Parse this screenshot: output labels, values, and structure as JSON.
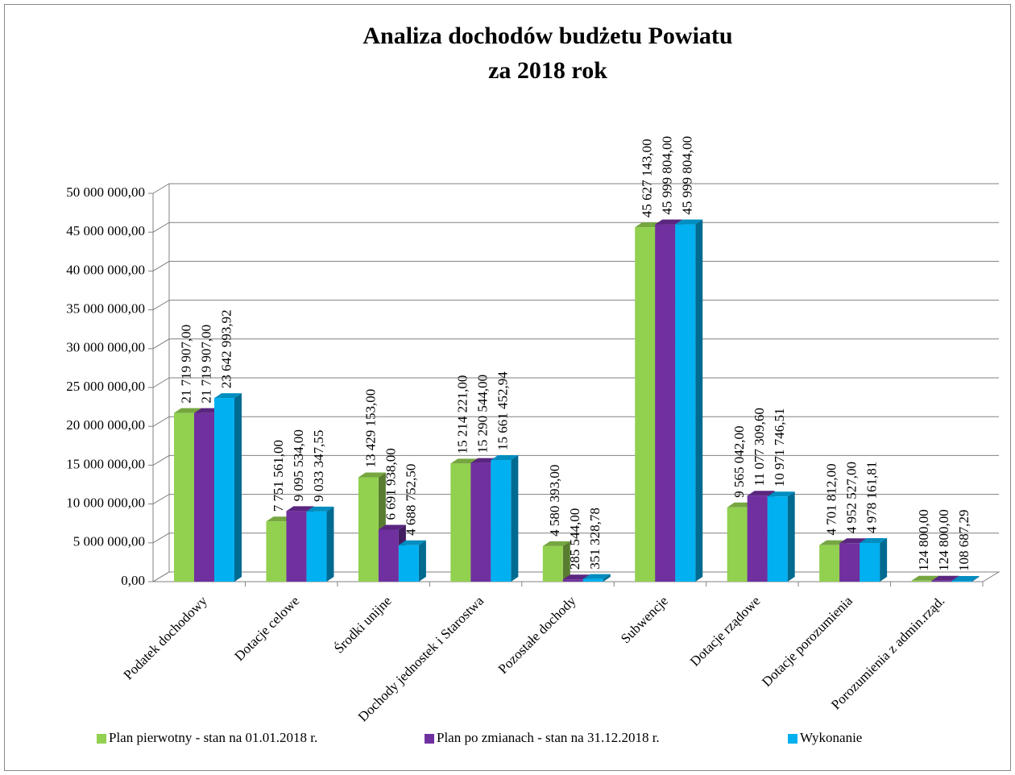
{
  "chart_data": {
    "type": "bar3d",
    "title": "Analiza dochodów budżetu Powiatu",
    "subtitle": "za 2018 rok",
    "categories": [
      "Podatek dochodowy",
      "Dotacje celowe",
      "Środki unijne",
      "Dochody jednostek i Starostwa",
      "Pozostałe dochody",
      "Subwencje",
      "Dotacje rządowe",
      "Dotacje porozumienia",
      "Porozumienia z admin.rząd."
    ],
    "series": [
      {
        "name": "Plan pierwotny - stan na 01.01.2018 r.",
        "color": "#92d050",
        "values": [
          21719907.0,
          7751561.0,
          13429153.0,
          15214221.0,
          4580393.0,
          45627143.0,
          9565042.0,
          4701812.0,
          124800.0
        ],
        "value_labels": [
          "21 719 907,00",
          "7 751 561,00",
          "13 429 153,00",
          "15 214 221,00",
          "4 580 393,00",
          "45 627 143,00",
          "9 565 042,00",
          "4 701 812,00",
          "124 800,00"
        ]
      },
      {
        "name": "Plan po zmianach - stan na 31.12.2018 r.",
        "color": "#7030a0",
        "values": [
          21719907.0,
          9095534.0,
          6691938.0,
          15290544.0,
          285544.0,
          45999804.0,
          11077309.6,
          4952527.0,
          124800.0
        ],
        "value_labels": [
          "21 719 907,00",
          "9 095 534,00",
          "6 691 938,00",
          "15 290 544,00",
          "285 544,00",
          "45 999 804,00",
          "11 077 309,60",
          "4 952 527,00",
          "124 800,00"
        ]
      },
      {
        "name": "Wykonanie",
        "color": "#00b0f0",
        "values": [
          23642993.92,
          9033347.55,
          4688752.5,
          15661452.94,
          351328.78,
          45999804.0,
          10971746.51,
          4978161.81,
          108687.29
        ],
        "value_labels": [
          "23 642 993,92",
          "9 033 347,55",
          "4 688 752,50",
          "15 661 452,94",
          "351 328,78",
          "45 999 804,00",
          "10 971 746,51",
          "4 978 161,81",
          "108 687,29"
        ]
      }
    ],
    "ylim": [
      0,
      50000000
    ],
    "yticks": [
      {
        "value": 0,
        "label": "0,00"
      },
      {
        "value": 5000000,
        "label": "5 000 000,00"
      },
      {
        "value": 10000000,
        "label": "10 000 000,00"
      },
      {
        "value": 15000000,
        "label": "15 000 000,00"
      },
      {
        "value": 20000000,
        "label": "20 000 000,00"
      },
      {
        "value": 25000000,
        "label": "25 000 000,00"
      },
      {
        "value": 30000000,
        "label": "30 000 000,00"
      },
      {
        "value": 35000000,
        "label": "35 000 000,00"
      },
      {
        "value": 40000000,
        "label": "40 000 000,00"
      },
      {
        "value": 45000000,
        "label": "45 000 000,00"
      },
      {
        "value": 50000000,
        "label": "50 000 000,00"
      }
    ],
    "grid": true,
    "legend": "bottom"
  }
}
